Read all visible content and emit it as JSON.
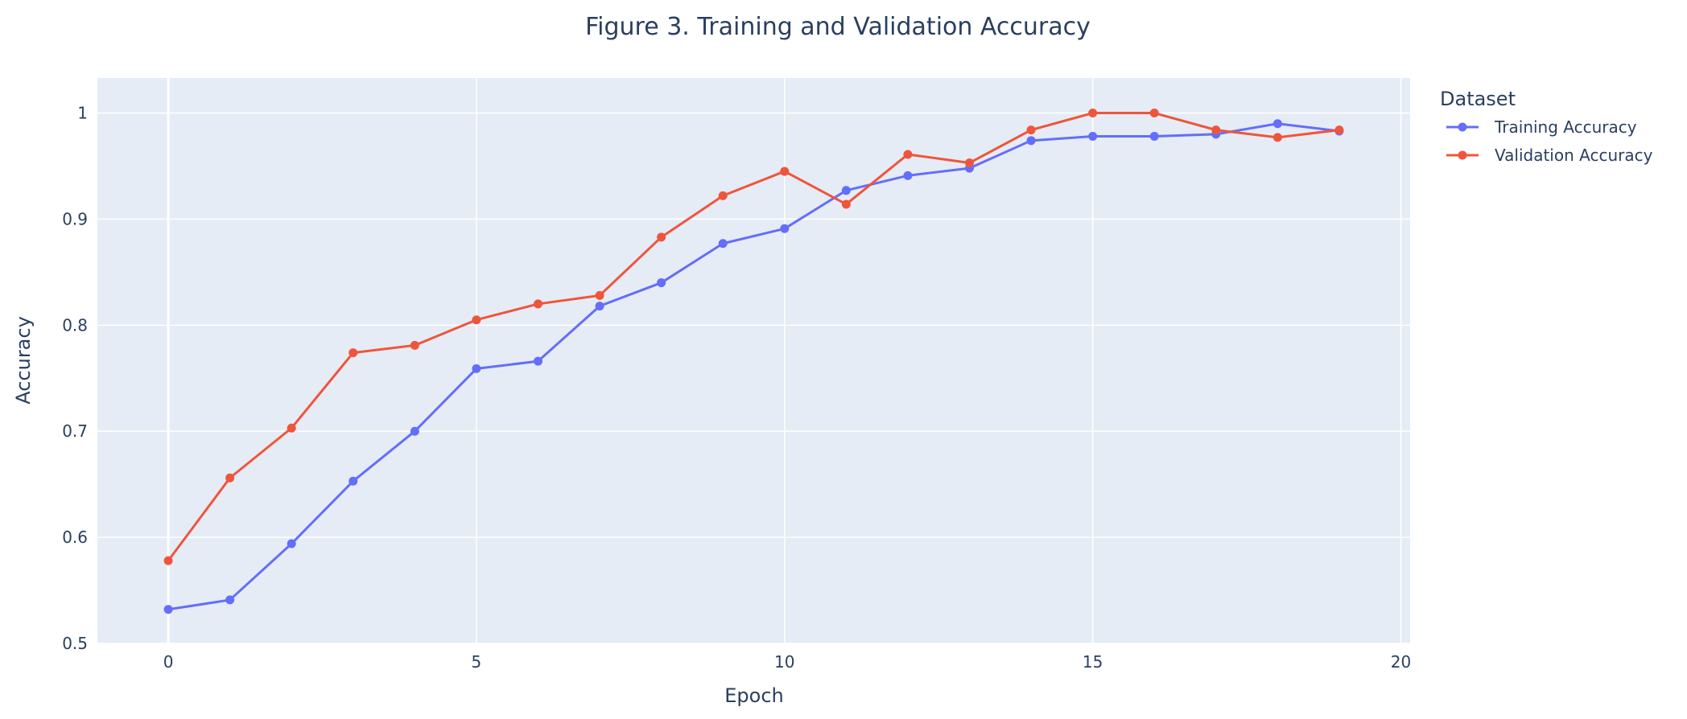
{
  "chart_data": {
    "type": "line",
    "title": "Figure 3. Training and Validation Accuracy",
    "xlabel": "Epoch",
    "ylabel": "Accuracy",
    "xlim": [
      -1.15,
      20.15
    ],
    "ylim": [
      0.5,
      1.033
    ],
    "x_ticks": [
      "0",
      "5",
      "10",
      "15",
      "20"
    ],
    "y_ticks": [
      "0.5",
      "0.6",
      "0.7",
      "0.8",
      "0.9",
      "1"
    ],
    "grid": true,
    "legend_title": "Dataset",
    "legend_position": "top-right outside",
    "x": [
      0,
      1,
      2,
      3,
      4,
      5,
      6,
      7,
      8,
      9,
      10,
      11,
      12,
      13,
      14,
      15,
      16,
      17,
      18,
      19
    ],
    "series": [
      {
        "name": "Training Accuracy",
        "color": "#636efa",
        "values": [
          0.532,
          0.541,
          0.594,
          0.653,
          0.7,
          0.759,
          0.766,
          0.818,
          0.84,
          0.877,
          0.891,
          0.927,
          0.941,
          0.948,
          0.974,
          0.978,
          0.978,
          0.98,
          0.99,
          0.983
        ]
      },
      {
        "name": "Validation Accuracy",
        "color": "#ef553b",
        "values": [
          0.578,
          0.656,
          0.703,
          0.774,
          0.781,
          0.805,
          0.82,
          0.828,
          0.883,
          0.922,
          0.945,
          0.914,
          0.961,
          0.953,
          0.984,
          1.0,
          1.0,
          0.984,
          0.977,
          0.984
        ]
      }
    ]
  },
  "style": {
    "plot_background": "#e5ecf6",
    "grid_color": "#ffffff",
    "text_color": "#2a3f5f"
  }
}
